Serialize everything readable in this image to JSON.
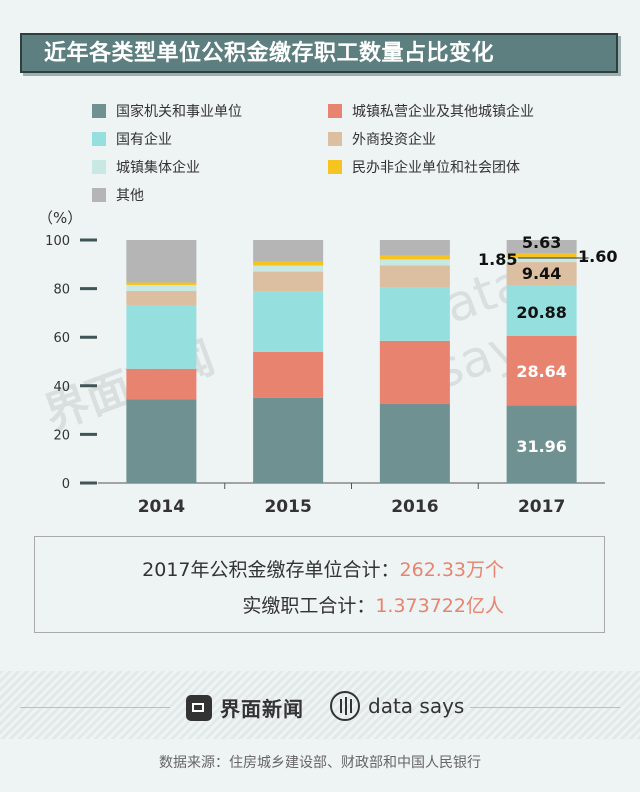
{
  "title": "近年各类型单位公积金缴存职工数量占比变化",
  "unit_label": "（%）",
  "legend": [
    {
      "label": "国家机关和事业单位",
      "color": "#6f9191"
    },
    {
      "label": "城镇私营企业及其他城镇企业",
      "color": "#e8836f"
    },
    {
      "label": "国有企业",
      "color": "#95e0df"
    },
    {
      "label": "外商投资企业",
      "color": "#dcbea0"
    },
    {
      "label": "城镇集体企业",
      "color": "#c8e8e3"
    },
    {
      "label": "民办非企业单位和社会团体",
      "color": "#f5c420"
    },
    {
      "label": "其他",
      "color": "#b5b5b5"
    }
  ],
  "chart_data": {
    "type": "bar",
    "stacked": true,
    "categories": [
      "2014",
      "2015",
      "2016",
      "2017"
    ],
    "ylim": [
      0,
      100
    ],
    "yticks": [
      0,
      20,
      40,
      60,
      80,
      100
    ],
    "ylabel": "（%）",
    "series": [
      {
        "name": "国家机关和事业单位",
        "color": "#6f9191",
        "values": [
          34.5,
          35.0,
          32.5,
          31.96
        ]
      },
      {
        "name": "城镇私营企业及其他城镇企业",
        "color": "#e8836f",
        "values": [
          12.5,
          19.0,
          26.0,
          28.64
        ]
      },
      {
        "name": "国有企业",
        "color": "#95e0df",
        "values": [
          26.0,
          25.0,
          22.0,
          20.88
        ]
      },
      {
        "name": "外商投资企业",
        "color": "#dcbea0",
        "values": [
          6.0,
          8.0,
          9.0,
          9.44
        ]
      },
      {
        "name": "城镇集体企业",
        "color": "#c8e8e3",
        "values": [
          2.5,
          2.5,
          2.5,
          1.6
        ]
      },
      {
        "name": "民办非企业单位和社会团体",
        "color": "#f5c420",
        "values": [
          1.0,
          1.5,
          1.5,
          1.85
        ]
      },
      {
        "name": "其他",
        "color": "#b5b5b5",
        "values": [
          17.5,
          9.0,
          6.5,
          5.63
        ]
      }
    ],
    "data_labels_2017": [
      "31.96",
      "28.64",
      "20.88",
      "9.44",
      "1.60",
      "1.85",
      "5.63"
    ]
  },
  "summary": {
    "units_label": "2017年公积金缴存单位合计：",
    "units_value": "262.33万个",
    "workers_label": "实缴职工合计：",
    "workers_value": "1.373722亿人"
  },
  "watermarks": [
    "界面新闻",
    "data says"
  ],
  "brand": {
    "left": "界面新闻",
    "right": "data says"
  },
  "source": "数据来源：住房城乡建设部、财政部和中国人民银行"
}
